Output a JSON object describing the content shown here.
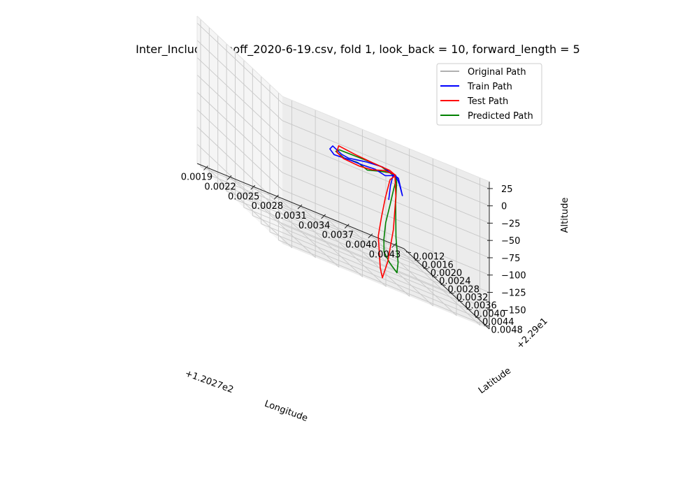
{
  "chart_data": {
    "type": "line",
    "projection": "3d",
    "title": "Inter_IncludeTakeoff_2020-6-19.csv, fold 1, look_back = 10, forward_length = 5",
    "xlabel": "Longitude",
    "ylabel": "Latitude",
    "zlabel": "Altitude",
    "x_offset_label": "+1.2027e2",
    "y_offset_label": "+2.29e1",
    "x_ticks": [
      "0.0019",
      "0.0022",
      "0.0025",
      "0.0028",
      "0.0031",
      "0.0034",
      "0.0037",
      "0.0040",
      "0.0043"
    ],
    "y_ticks": [
      "0.0012",
      "0.0016",
      "0.0020",
      "0.0024",
      "0.0028",
      "0.0032",
      "0.0036",
      "0.0040",
      "0.0044",
      "0.0048"
    ],
    "z_ticks": [
      "25",
      "0",
      "−25",
      "−50",
      "−75",
      "−100",
      "−125",
      "−150"
    ],
    "grid": true,
    "legend_position": "upper right",
    "series": [
      {
        "name": "Original Path",
        "color": "#b0b0b0",
        "points": [
          [
            0.00336,
            0.00449,
            -20
          ],
          [
            0.0034,
            0.00452,
            -30
          ],
          [
            0.00343,
            0.00455,
            -44
          ]
        ]
      },
      {
        "name": "Train Path",
        "color": "#0000ff",
        "points": [
          [
            0.00336,
            0.00449,
            -20
          ],
          [
            0.0034,
            0.00452,
            -30
          ],
          [
            0.00343,
            0.00455,
            -44
          ],
          [
            0.00339,
            0.00451,
            -22
          ],
          [
            0.00322,
            0.0044,
            -17
          ],
          [
            0.003,
            0.00447,
            -18
          ],
          [
            0.00276,
            0.00449,
            -23
          ],
          [
            0.00268,
            0.00446,
            -22
          ],
          [
            0.00258,
            0.00441,
            -16
          ],
          [
            0.00254,
            0.00442,
            -22
          ],
          [
            0.0026,
            0.0044,
            -28
          ],
          [
            0.0028,
            0.00442,
            -26
          ],
          [
            0.00293,
            0.00452,
            -24
          ],
          [
            0.0031,
            0.0045,
            -23
          ],
          [
            0.00322,
            0.00452,
            -26
          ],
          [
            0.00335,
            0.00454,
            -19
          ],
          [
            0.00333,
            0.00449,
            -20
          ],
          [
            0.0033,
            0.00447,
            -38
          ],
          [
            0.00328,
            0.00446,
            -60
          ]
        ]
      },
      {
        "name": "Test Path",
        "color": "#ff0000",
        "points": [
          [
            0.00336,
            0.00449,
            -20
          ],
          [
            0.0033,
            0.00444,
            -17
          ],
          [
            0.00308,
            0.00446,
            -16
          ],
          [
            0.00286,
            0.00441,
            -15
          ],
          [
            0.00265,
            0.00443,
            -12
          ],
          [
            0.00262,
            0.00445,
            -22
          ],
          [
            0.0027,
            0.00447,
            -27
          ],
          [
            0.0029,
            0.00449,
            -28
          ],
          [
            0.00306,
            0.00448,
            -26
          ],
          [
            0.00322,
            0.00447,
            -20
          ],
          [
            0.00335,
            0.00449,
            -19
          ],
          [
            0.00336,
            0.0045,
            -50
          ],
          [
            0.00334,
            0.00446,
            -100
          ],
          [
            0.00328,
            0.00442,
            -150
          ],
          [
            0.00323,
            0.00435,
            -178
          ],
          [
            0.0032,
            0.00436,
            -165
          ],
          [
            0.00318,
            0.00434,
            -120
          ],
          [
            0.00321,
            0.00438,
            -90
          ],
          [
            0.00325,
            0.00441,
            -60
          ],
          [
            0.0033,
            0.00445,
            -30
          ],
          [
            0.00336,
            0.00449,
            -20
          ]
        ]
      },
      {
        "name": "Predicted Path",
        "color": "#008000",
        "points": [
          [
            0.00336,
            0.00449,
            -20
          ],
          [
            0.00333,
            0.0045,
            -21
          ],
          [
            0.00318,
            0.00447,
            -16
          ],
          [
            0.00302,
            0.00452,
            -15
          ],
          [
            0.00282,
            0.00449,
            -16
          ],
          [
            0.00265,
            0.00446,
            -17
          ],
          [
            0.00262,
            0.00441,
            -22
          ],
          [
            0.00271,
            0.00445,
            -26
          ],
          [
            0.00288,
            0.00448,
            -24
          ],
          [
            0.003,
            0.00449,
            -29
          ],
          [
            0.00316,
            0.0045,
            -23
          ],
          [
            0.0033,
            0.00449,
            -19
          ],
          [
            0.00337,
            0.0045,
            -24
          ],
          [
            0.00334,
            0.00448,
            -40
          ],
          [
            0.0033,
            0.00446,
            -65
          ],
          [
            0.00325,
            0.00443,
            -95
          ],
          [
            0.00323,
            0.00442,
            -120
          ],
          [
            0.00322,
            0.00446,
            -138
          ],
          [
            0.00329,
            0.00447,
            -150
          ],
          [
            0.00338,
            0.00448,
            -160
          ],
          [
            0.0034,
            0.00446,
            -145
          ],
          [
            0.00337,
            0.00447,
            -110
          ],
          [
            0.00336,
            0.00449,
            -60
          ],
          [
            0.00337,
            0.0045,
            -30
          ],
          [
            0.00336,
            0.00449,
            -20
          ]
        ]
      }
    ]
  }
}
